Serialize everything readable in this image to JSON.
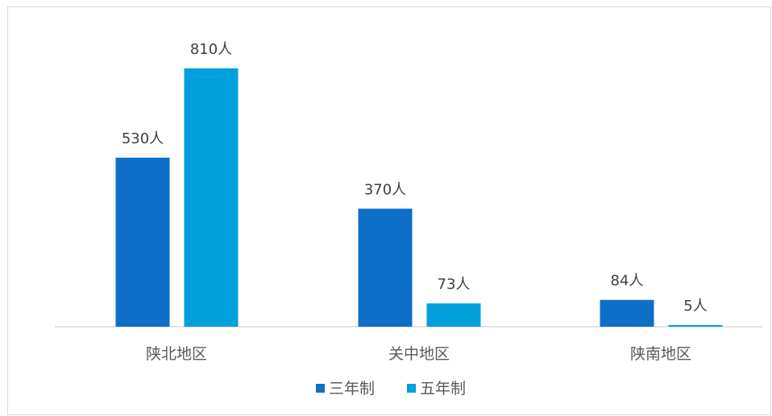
{
  "chart_data": {
    "type": "bar",
    "categories": [
      "陕北地区",
      "关中地区",
      "陕南地区"
    ],
    "series": [
      {
        "name": "三年制",
        "values": [
          530,
          370,
          84
        ],
        "labels": [
          "530人",
          "370人",
          "84人"
        ],
        "color": "#0e6fc8"
      },
      {
        "name": "五年制",
        "values": [
          810,
          73,
          5
        ],
        "labels": [
          "810人",
          "73人",
          "5人"
        ],
        "color": "#00a0dc"
      }
    ],
    "ylim": [
      0,
      810
    ],
    "grid": false,
    "legend": "bottom",
    "axis_color": "#d9d9d9"
  }
}
